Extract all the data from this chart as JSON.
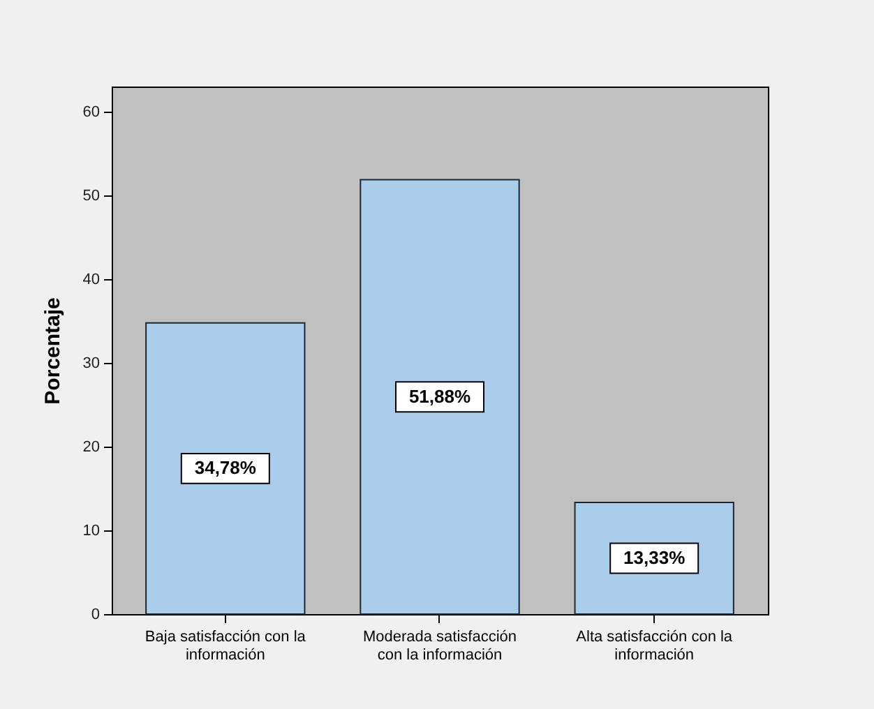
{
  "chart_data": {
    "type": "bar",
    "ylabel": "Porcentaje",
    "categories": [
      "Baja satisfacción con la información",
      "Moderada satisfacción con la información",
      "Alta satisfacción con la información"
    ],
    "values": [
      34.78,
      51.88,
      13.33
    ],
    "value_labels": [
      "34,78%",
      "51,88%",
      "13,33%"
    ],
    "color": "#aacdec",
    "ylim": [
      0,
      63
    ],
    "yticks": [
      0,
      10,
      20,
      30,
      40,
      50,
      60
    ],
    "grid": false
  }
}
